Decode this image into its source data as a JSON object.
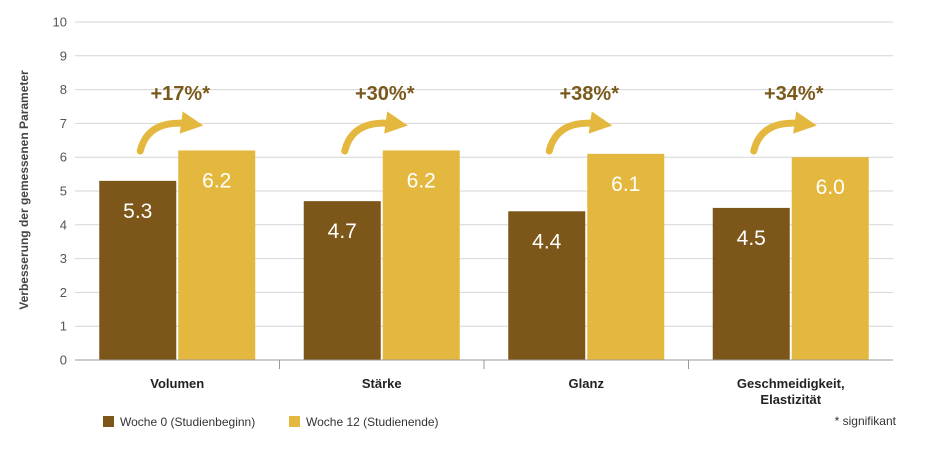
{
  "chart_data": {
    "type": "bar",
    "ylabel": "Verbesserung der gemessenen Parameter",
    "ylim": [
      0,
      10
    ],
    "yticks": [
      0,
      1,
      2,
      3,
      4,
      5,
      6,
      7,
      8,
      9,
      10
    ],
    "grid": true,
    "categories": [
      [
        "Volumen"
      ],
      [
        "Stärke"
      ],
      [
        "Glanz"
      ],
      [
        "Geschmeidigkeit,",
        "Elastizität"
      ]
    ],
    "series": [
      {
        "name": "Woche 0 (Studienbeginn)",
        "color": "#7d5719",
        "values": [
          5.3,
          4.7,
          4.4,
          4.5
        ],
        "labels": [
          "5.3",
          "4.7",
          "4.4",
          "4.5"
        ]
      },
      {
        "name": "Woche 12 (Studienende)",
        "color": "#e4b83f",
        "values": [
          6.2,
          6.2,
          6.1,
          6.0
        ],
        "labels": [
          "6.2",
          "6.2",
          "6.1",
          "6.0"
        ]
      }
    ],
    "annotations": [
      "+17%*",
      "+30%*",
      "+38%*",
      "+34%*"
    ],
    "annotation_color": "#7a5a1c",
    "arrow_color": "#e4b83f",
    "legend_position": "bottom-left",
    "footnote": "* signifikant"
  }
}
